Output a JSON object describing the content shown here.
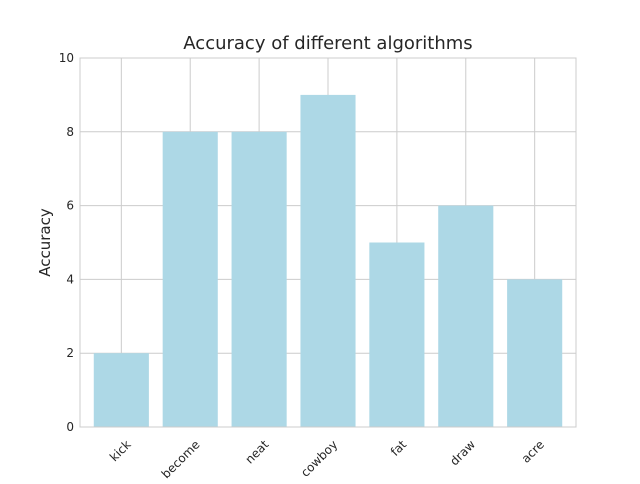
{
  "chart_data": {
    "type": "bar",
    "title": "Accuracy of different algorithms",
    "xlabel": "",
    "ylabel": "Accuracy",
    "categories": [
      "kick",
      "become",
      "neat",
      "cowboy",
      "fat",
      "draw",
      "acre"
    ],
    "values": [
      2,
      8,
      8,
      9,
      5,
      6,
      4
    ],
    "ylim": [
      0,
      10
    ],
    "yticks": [
      0,
      2,
      4,
      6,
      8,
      10
    ],
    "grid": true,
    "bar_color": "#add8e6",
    "xtick_rotation": 45
  }
}
